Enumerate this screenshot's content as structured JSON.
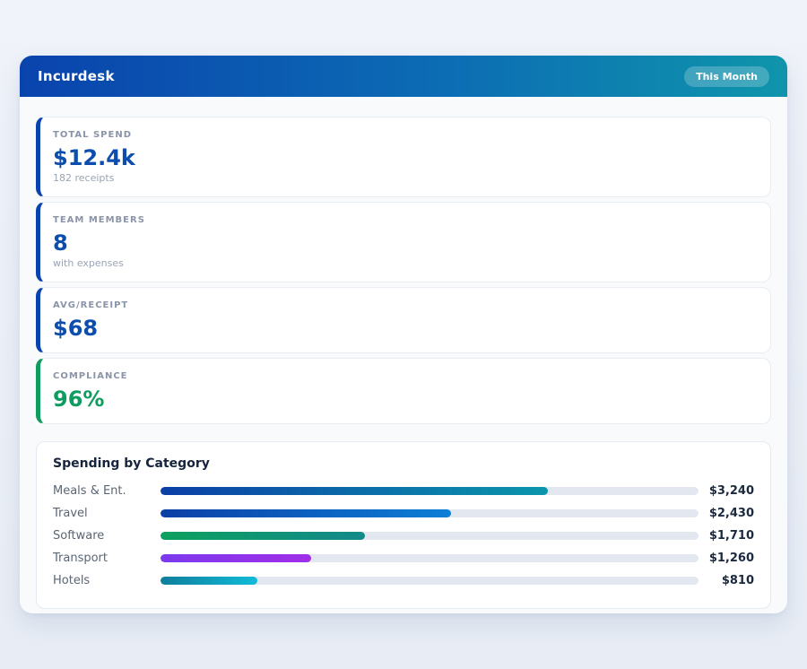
{
  "header": {
    "title": "Incurdesk",
    "badge": "This Month"
  },
  "stats": [
    {
      "label": "TOTAL SPEND",
      "value": "$12.4k",
      "sub": "182 receipts",
      "accent": "#0a43ad",
      "value_color": "#0d4dad"
    },
    {
      "label": "TEAM MEMBERS",
      "value": "8",
      "sub": "with expenses",
      "accent": "#0a43ad",
      "value_color": "#0d4dad"
    },
    {
      "label": "AVG/RECEIPT",
      "value": "$68",
      "sub": "",
      "accent": "#0a43ad",
      "value_color": "#0d4dad"
    },
    {
      "label": "COMPLIANCE",
      "value": "96%",
      "sub": "",
      "accent": "#0f9d5f",
      "value_color": "#0f9d5f"
    }
  ],
  "chart_data": {
    "type": "bar",
    "orientation": "horizontal",
    "title": "Spending by Category",
    "categories": [
      "Meals & Ent.",
      "Travel",
      "Software",
      "Transport",
      "Hotels"
    ],
    "values": [
      3240,
      2430,
      1710,
      1260,
      810
    ],
    "value_labels": [
      "$3,240",
      "$2,430",
      "$1,710",
      "$1,260",
      "$810"
    ],
    "xlim": [
      0,
      4500
    ],
    "grid": false,
    "legend": false,
    "bar_gradients": [
      [
        "#0b3fa6",
        "#0b96ab"
      ],
      [
        "#0b3fa6",
        "#0d7fd6"
      ],
      [
        "#0da05f",
        "#12898a"
      ],
      [
        "#7c3aed",
        "#a02ee8"
      ],
      [
        "#0f7e9c",
        "#10bcd8"
      ]
    ],
    "track_color": "#e3e8f0"
  },
  "colors": {
    "header_gradient_start": "#0a43ad",
    "header_gradient_end": "#0f95ab",
    "accent_blue": "#0a43ad",
    "accent_green": "#0f9d5f",
    "page_background": "#edf1f7",
    "card_background": "#ffffff"
  }
}
